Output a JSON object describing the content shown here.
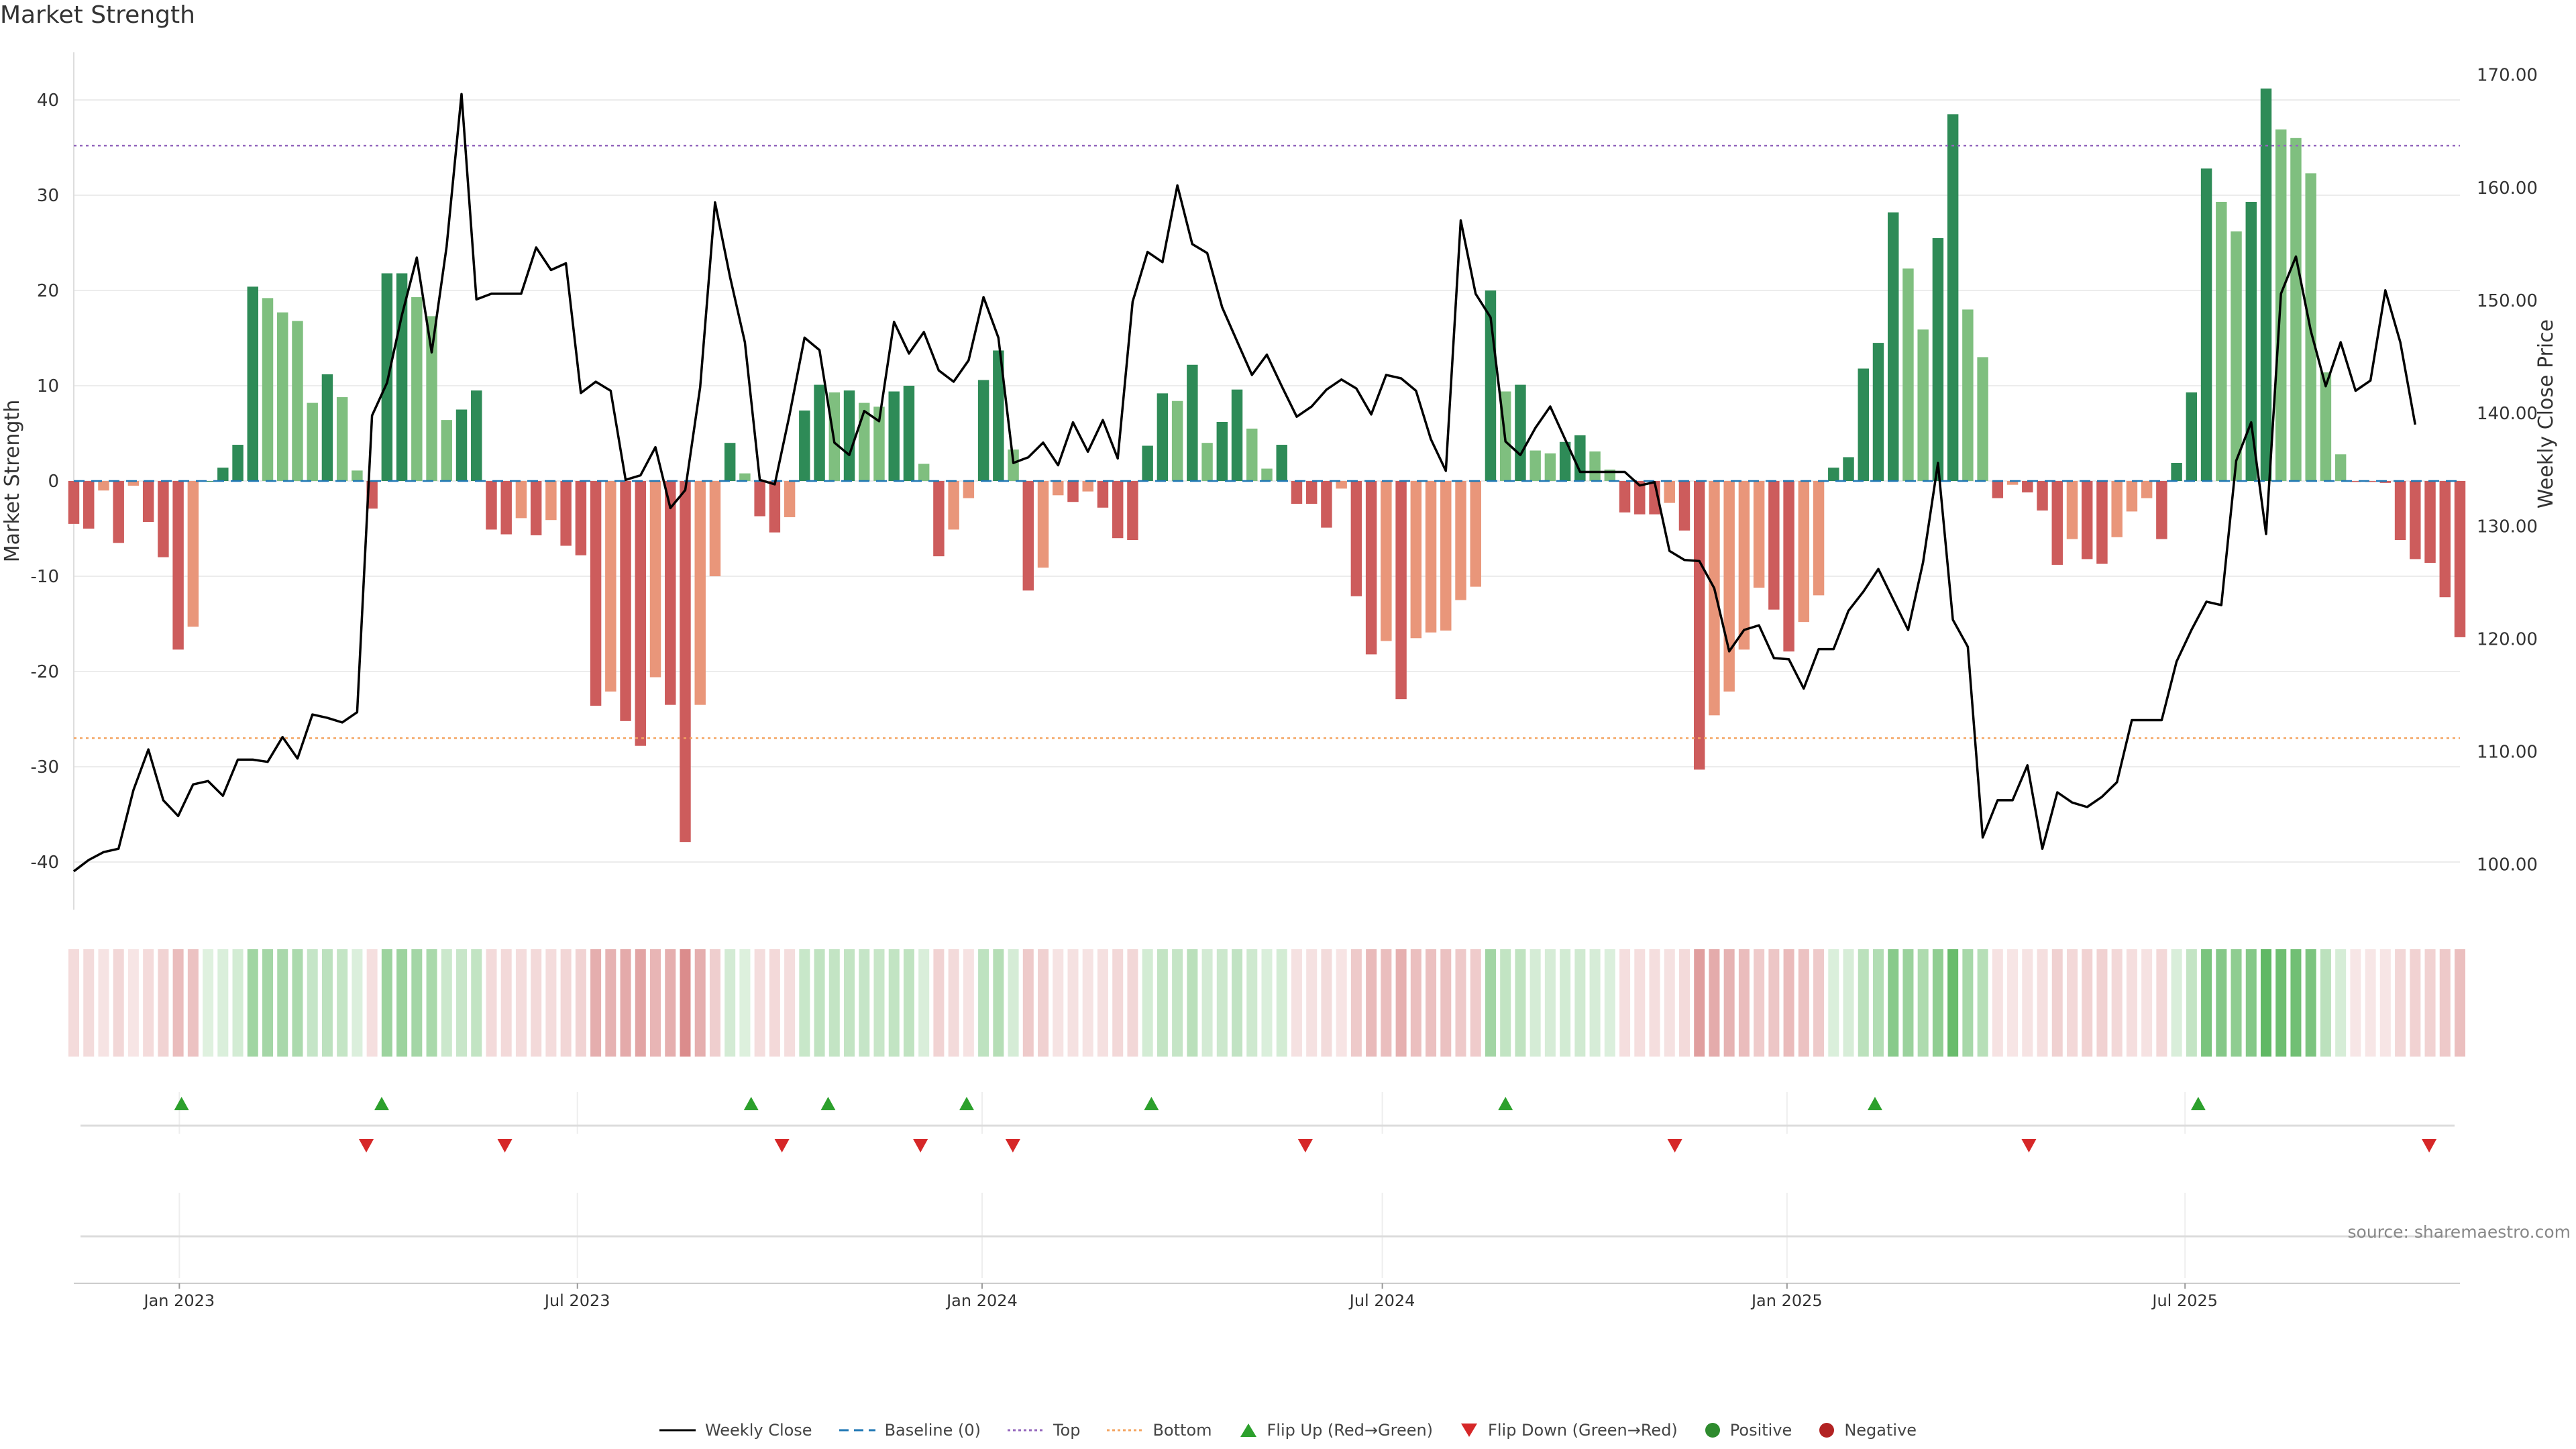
{
  "title": "Market Strength",
  "source": "source: sharemaestro.com",
  "legend": {
    "weekly_close": "Weekly Close",
    "baseline": "Baseline (0)",
    "top": "Top",
    "bottom": "Bottom",
    "flip_up": "Flip Up (Red→Green)",
    "flip_down": "Flip Down (Green→Red)",
    "positive": "Positive",
    "negative": "Negative"
  },
  "colors": {
    "pos_strong": "#2e8b57",
    "pos_weak": "#7fbf7f",
    "neg_strong": "#cd5c5c",
    "neg_weak": "#e9967a",
    "price_line": "#000000",
    "top_line": "#9467bd",
    "bottom_line": "#f4a460",
    "baseline": "#1f77b4",
    "flip_up": "#2ca02c",
    "flip_down": "#d62728"
  },
  "chart_data": {
    "type": "bar",
    "x_type": "weekly dates",
    "x_start": "2022-11-14",
    "x_end": "2025-11-03",
    "xlabel": "",
    "ylabel": "Market Strength",
    "ylim": [
      -45,
      45
    ],
    "y_ticks": [
      -40,
      -30,
      -20,
      -10,
      0,
      10,
      20,
      30,
      40
    ],
    "y2label": "Weekly Close Price",
    "y2lim": [
      96,
      172
    ],
    "y2_ticks": [
      "100.00",
      "110.00",
      "120.00",
      "130.00",
      "140.00",
      "150.00",
      "160.00",
      "170.00"
    ],
    "x_ticks": [
      "Jan 2023",
      "Jul 2023",
      "Jan 2024",
      "Jul 2024",
      "Jan 2025",
      "Jul 2025"
    ],
    "top_level": 35.2,
    "bottom_level": -27,
    "grid": true,
    "legend_position": "bottom",
    "series": [
      {
        "name": "Market Strength",
        "values": [
          -4.5,
          -5,
          -1,
          -6.5,
          -0.5,
          -4.3,
          -8,
          -17.7,
          -15.3,
          0,
          1.4,
          3.8,
          20.4,
          19.2,
          17.7,
          16.8,
          8.2,
          11.2,
          8.8,
          1.1,
          -2.9,
          21.8,
          21.8,
          19.3,
          17.3,
          6.4,
          7.5,
          9.5,
          -5.1,
          -5.6,
          -3.9,
          -5.7,
          -4.1,
          -6.8,
          -7.8,
          -23.6,
          -22.1,
          -25.2,
          -27.8,
          -20.6,
          -23.5,
          -37.9,
          -23.5,
          -10,
          4,
          0.8,
          -3.7,
          -5.4,
          -3.8,
          7.4,
          10.1,
          9.3,
          9.5,
          8.2,
          7.8,
          9.4,
          10,
          1.8,
          -7.9,
          -5.1,
          -1.8,
          10.6,
          13.7,
          3.3,
          -11.5,
          -9.1,
          -1.5,
          -2.2,
          -1.1,
          -2.8,
          -6,
          -6.2,
          3.7,
          9.2,
          8.4,
          12.2,
          4,
          6.2,
          9.6,
          5.5,
          1.3,
          3.8,
          -2.4,
          -2.4,
          -4.9,
          -0.8,
          -12.1,
          -18.2,
          -16.8,
          -22.9,
          -16.5,
          -15.9,
          -15.7,
          -12.5,
          -11.1,
          20,
          9.4,
          10.1,
          3.2,
          2.9,
          4.1,
          4.8,
          3.1,
          1.2,
          -3.3,
          -3.5,
          -3.5,
          -2.3,
          -5.2,
          -30.3,
          -24.6,
          -22.1,
          -17.7,
          -11.2,
          -13.5,
          -17.9,
          -14.8,
          -12,
          1.4,
          2.5,
          11.8,
          14.5,
          28.2,
          22.3,
          15.9,
          25.5,
          38.5,
          18,
          13,
          -1.8,
          -0.4,
          -1.2,
          -3.1,
          -8.8,
          -6.1,
          -8.2,
          -8.7,
          -5.9,
          -3.2,
          -1.8,
          -6.1,
          1.9,
          9.3,
          32.8,
          29.3,
          26.2,
          29.3,
          41.2,
          36.9,
          36,
          32.3,
          11.4,
          2.8,
          -0.1,
          -0.1,
          -0.2,
          -6.2,
          -8.2,
          -8.6,
          -12.2,
          -16.4
        ]
      },
      {
        "name": "Weekly Close",
        "values": [
          99.4,
          100.4,
          101.1,
          101.4,
          106.6,
          110.2,
          105.7,
          104.3,
          107.1,
          107.4,
          106.1,
          109.3,
          109.3,
          109.1,
          111.3,
          109.4,
          113.3,
          113.0,
          112.6,
          113.5,
          139.8,
          142.7,
          148.7,
          153.8,
          145.4,
          154.8,
          168.3,
          150.1,
          150.6,
          150.6,
          150.6,
          154.7,
          152.7,
          153.3,
          141.8,
          142.8,
          142.0,
          134.1,
          134.5,
          137.0,
          131.6,
          133.2,
          142.3,
          158.7,
          152.1,
          146.3,
          134.1,
          133.7,
          139.9,
          146.7,
          145.6,
          137.4,
          136.3,
          140.2,
          139.3,
          148.1,
          145.3,
          147.2,
          143.8,
          142.8,
          144.7,
          150.3,
          146.7,
          135.6,
          136.1,
          137.4,
          135.4,
          139.2,
          136.6,
          139.4,
          136.0,
          149.9,
          154.3,
          153.4,
          160.2,
          155.0,
          154.2,
          149.4,
          146.4,
          143.4,
          145.2,
          142.4,
          139.7,
          140.6,
          142.1,
          143.0,
          142.2,
          139.9,
          143.4,
          143.1,
          142.0,
          137.7,
          134.9,
          157.1,
          150.6,
          148.5,
          137.5,
          136.3,
          138.7,
          140.6,
          137.7,
          134.8,
          134.8,
          134.8,
          134.8,
          133.6,
          133.9,
          127.8,
          127.0,
          126.9,
          124.5,
          118.9,
          120.8,
          121.2,
          118.3,
          118.2,
          115.6,
          119.1,
          119.1,
          122.5,
          124.2,
          126.2,
          123.5,
          120.8,
          126.8,
          135.6,
          121.7,
          119.3,
          102.4,
          105.7,
          105.7,
          108.8,
          101.4,
          106.4,
          105.5,
          105.1,
          106.0,
          107.3,
          112.8,
          112.8,
          112.8,
          118.0,
          120.8,
          123.3,
          123.0,
          135.8,
          139.2,
          129.3,
          150.6,
          153.9,
          147.3,
          142.4,
          146.3,
          142.0,
          142.9,
          150.9,
          146.3,
          139.0
        ]
      }
    ],
    "flip_up_dates": [
      "2023-01-02",
      "2023-04-03",
      "2023-09-18",
      "2023-10-23",
      "2023-12-25",
      "2024-03-18",
      "2024-08-26",
      "2025-02-10",
      "2025-07-07"
    ],
    "flip_down_dates": [
      "2023-03-27",
      "2023-05-29",
      "2023-10-02",
      "2023-12-04",
      "2024-01-15",
      "2024-05-27",
      "2024-11-11",
      "2025-04-21",
      "2025-10-20"
    ]
  }
}
